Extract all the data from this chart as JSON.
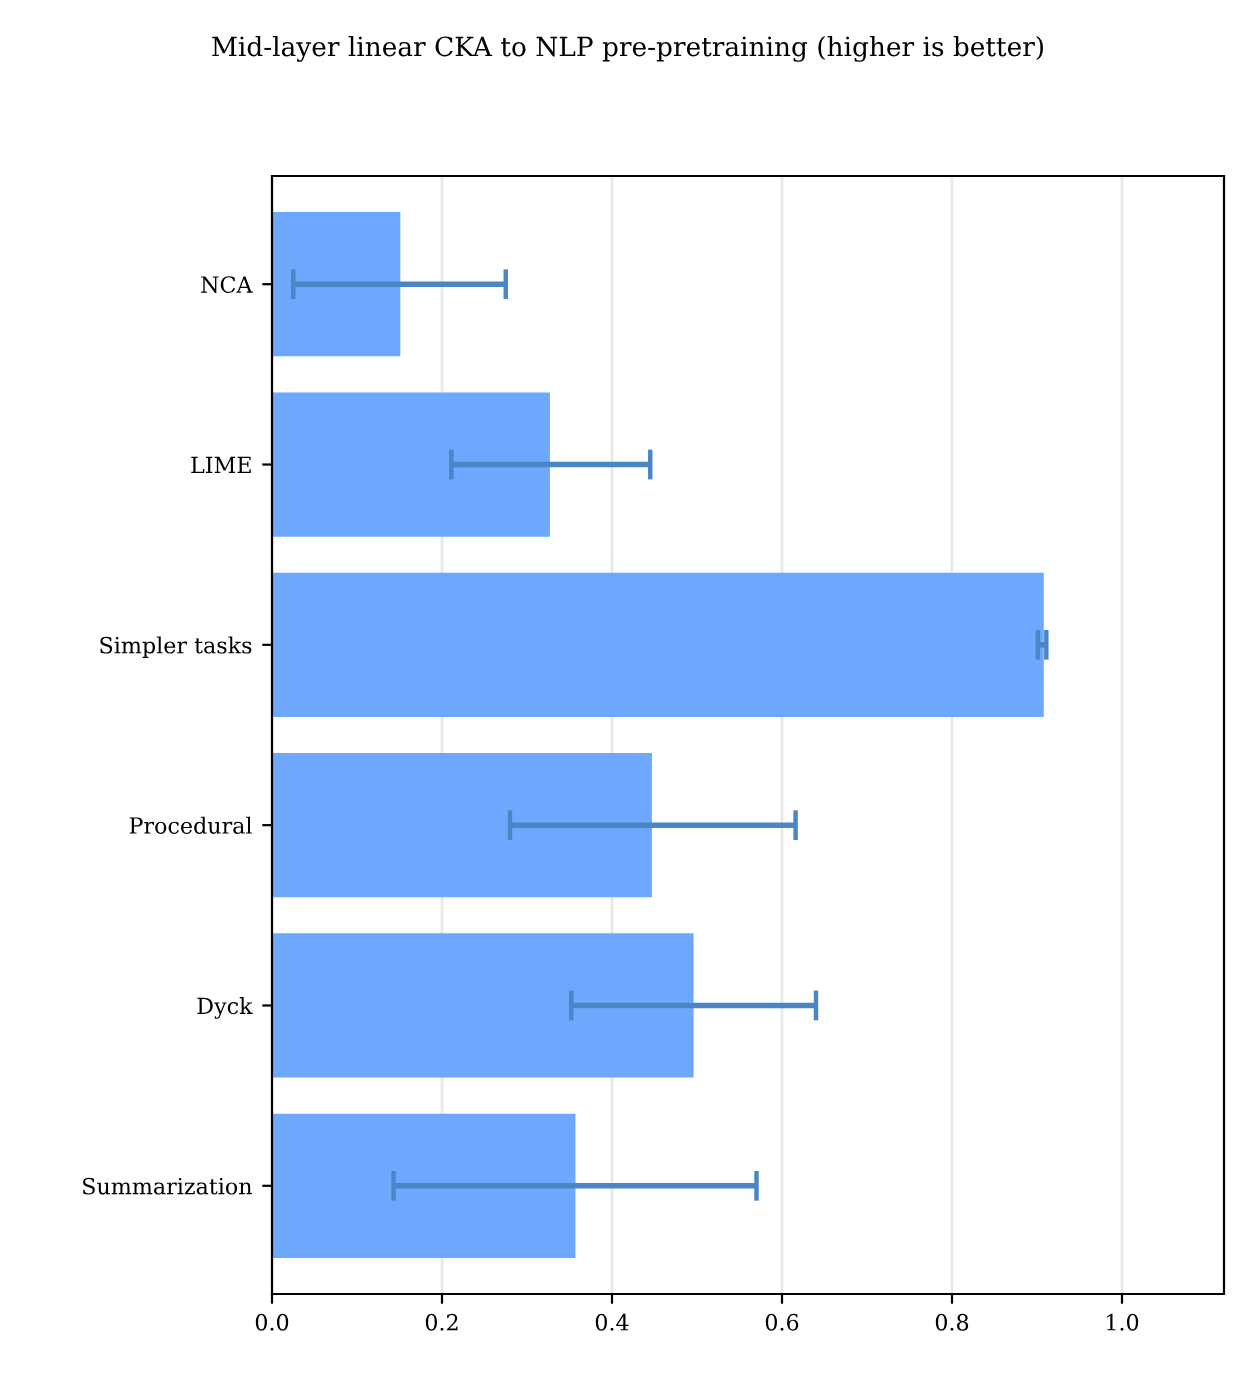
{
  "chart_data": {
    "type": "bar",
    "orientation": "horizontal",
    "title": "Mid-layer linear CKA to NLP pre-pretraining (higher is better)",
    "categories": [
      "NCA",
      "LIME",
      "Simpler tasks",
      "Procedural",
      "Dyck",
      "Summarization"
    ],
    "values": [
      0.151,
      0.327,
      0.908,
      0.447,
      0.496,
      0.357
    ],
    "errors": [
      [
        0.025,
        0.275
      ],
      [
        0.211,
        0.445
      ],
      [
        0.901,
        0.911
      ],
      [
        0.28,
        0.616
      ],
      [
        0.352,
        0.64
      ],
      [
        0.143,
        0.57
      ]
    ],
    "color": "#6ea8fe",
    "xlim": [
      0,
      1.12
    ],
    "xticks": [
      {
        "value": 0,
        "label": "0.0"
      },
      0.2,
      0.4,
      0.6,
      0.8,
      {
        "value": 1,
        "label": "1.0"
      }
    ],
    "grid": "x"
  }
}
